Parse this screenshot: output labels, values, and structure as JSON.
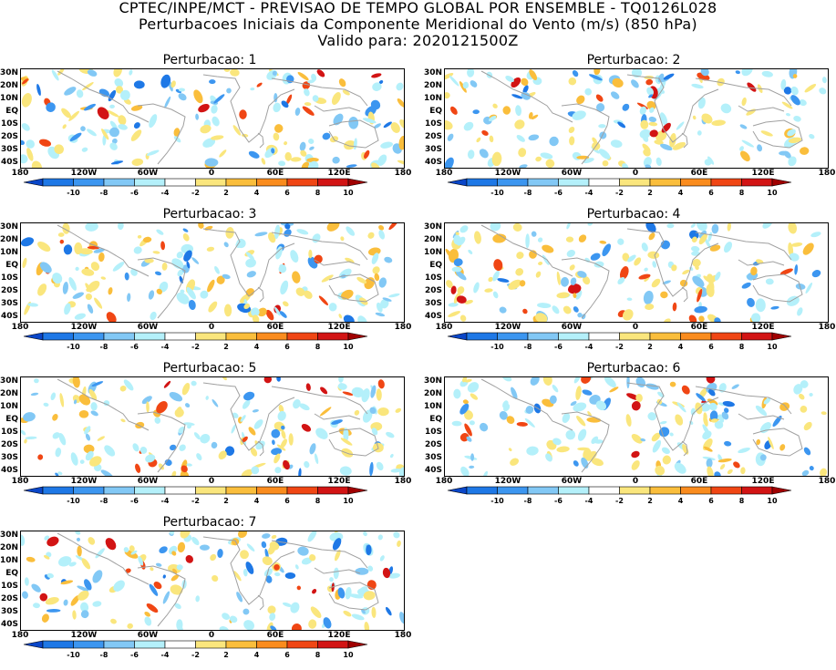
{
  "header": {
    "line1": "CPTEC/INPE/MCT - PREVISAO DE TEMPO GLOBAL POR ENSEMBLE - TQ0126L028",
    "line2": "Perturbacoes Iniciais da Componente Meridional do Vento (m/s) (850 hPa)",
    "line3": "Valido para: 2020121500Z"
  },
  "panels": [
    {
      "title": "Perturbacao: 1"
    },
    {
      "title": "Perturbacao: 2"
    },
    {
      "title": "Perturbacao: 3"
    },
    {
      "title": "Perturbacao: 4"
    },
    {
      "title": "Perturbacao: 5"
    },
    {
      "title": "Perturbacao: 6"
    },
    {
      "title": "Perturbacao: 7"
    }
  ],
  "lat_labels": [
    "30N",
    "20N",
    "10N",
    "EQ",
    "10S",
    "20S",
    "30S",
    "40S"
  ],
  "lon_labels": [
    "180",
    "120W",
    "60W",
    "0",
    "60E",
    "120E",
    "180"
  ],
  "colorbar": {
    "ticks": [
      "-10",
      "-8",
      "-6",
      "-4",
      "-2",
      "2",
      "4",
      "6",
      "8",
      "10"
    ],
    "colors": [
      "#0a46c8",
      "#1e78e6",
      "#3c96f0",
      "#82c8f5",
      "#b4f0fa",
      "#ffffff",
      "#fae67d",
      "#fabe3c",
      "#fa8c1e",
      "#f04614",
      "#d21414",
      "#a00000"
    ]
  }
}
